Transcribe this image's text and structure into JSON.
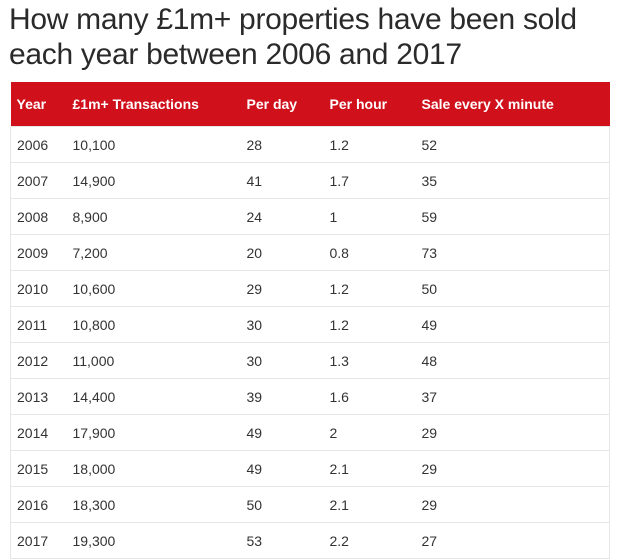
{
  "title": "How many £1m+ properties have been sold each year between 2006 and 2017",
  "table": {
    "headers": [
      "Year",
      "£1m+ Transactions",
      "Per day",
      "Per hour",
      "Sale every X minute"
    ],
    "rows": [
      [
        "2006",
        "10,100",
        "28",
        "1.2",
        "52"
      ],
      [
        "2007",
        "14,900",
        "41",
        "1.7",
        "35"
      ],
      [
        "2008",
        "8,900",
        "24",
        "1",
        "59"
      ],
      [
        "2009",
        "7,200",
        "20",
        "0.8",
        "73"
      ],
      [
        "2010",
        "10,600",
        "29",
        "1.2",
        "50"
      ],
      [
        "2011",
        "10,800",
        "30",
        "1.2",
        "49"
      ],
      [
        "2012",
        "11,000",
        "30",
        "1.3",
        "48"
      ],
      [
        "2013",
        "14,400",
        "39",
        "1.6",
        "37"
      ],
      [
        "2014",
        "17,900",
        "49",
        "2",
        "29"
      ],
      [
        "2015",
        "18,000",
        "49",
        "2.1",
        "29"
      ],
      [
        "2016",
        "18,300",
        "50",
        "2.1",
        "29"
      ],
      [
        "2017",
        "19,300",
        "53",
        "2.2",
        "27"
      ]
    ]
  },
  "colors": {
    "header_background": "#d0111c",
    "header_text": "#ffffff",
    "body_text": "#333333",
    "title_text": "#2a2a2a",
    "border": "#e6e6e6"
  }
}
